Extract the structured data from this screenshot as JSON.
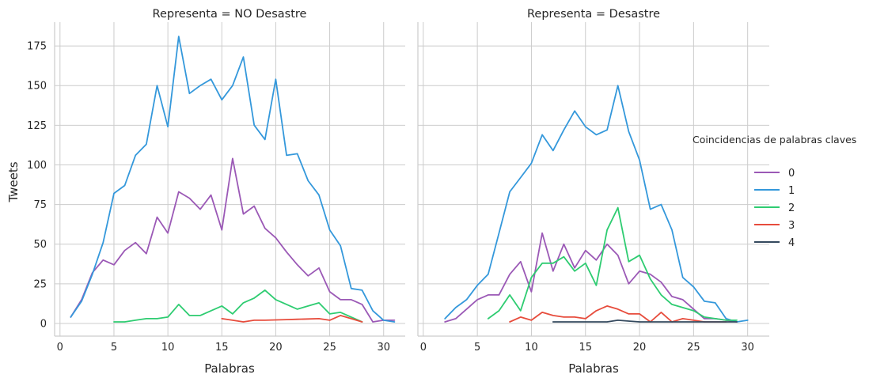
{
  "chart_data": {
    "type": "line",
    "ylabel": "Tweets",
    "xlabel": "Palabras",
    "xlim": [
      -0.5,
      32
    ],
    "ylim": [
      -8,
      190
    ],
    "xticks": [
      0,
      5,
      10,
      15,
      20,
      25,
      30
    ],
    "yticks": [
      0,
      25,
      50,
      75,
      100,
      125,
      150,
      175
    ],
    "xtick_labels": [
      "0",
      "5",
      "10",
      "15",
      "20",
      "25",
      "30"
    ],
    "ytick_labels": [
      "0",
      "25",
      "50",
      "75",
      "100",
      "125",
      "150",
      "175"
    ],
    "grid": true,
    "legend": {
      "title": "Coincidencias de palabras claves",
      "placement": "right",
      "entries": [
        {
          "label": "0",
          "color": "#9b59b6"
        },
        {
          "label": "1",
          "color": "#3498db"
        },
        {
          "label": "2",
          "color": "#2ecc71"
        },
        {
          "label": "3",
          "color": "#e74c3c"
        },
        {
          "label": "4",
          "color": "#34495e"
        }
      ]
    },
    "panels": [
      {
        "title": "Representa = NO Desastre",
        "series": [
          {
            "legend_index": 0,
            "x": [
              1,
              2,
              3,
              4,
              5,
              6,
              7,
              8,
              9,
              10,
              11,
              12,
              13,
              14,
              15,
              16,
              17,
              18,
              19,
              20,
              21,
              22,
              23,
              24,
              25,
              26,
              27,
              28,
              29,
              30,
              31
            ],
            "y": [
              4,
              15,
              32,
              40,
              37,
              46,
              51,
              44,
              67,
              57,
              83,
              79,
              72,
              81,
              59,
              104,
              69,
              74,
              60,
              54,
              45,
              37,
              30,
              35,
              20,
              15,
              15,
              12,
              1,
              2,
              2
            ]
          },
          {
            "legend_index": 1,
            "x": [
              1,
              2,
              3,
              4,
              5,
              6,
              7,
              8,
              9,
              10,
              11,
              12,
              13,
              14,
              15,
              16,
              17,
              18,
              19,
              20,
              21,
              22,
              23,
              24,
              25,
              26,
              27,
              28,
              29,
              30,
              31
            ],
            "y": [
              4,
              14,
              31,
              51,
              82,
              87,
              106,
              113,
              150,
              124,
              181,
              145,
              150,
              154,
              141,
              150,
              168,
              125,
              116,
              154,
              106,
              107,
              90,
              81,
              59,
              49,
              22,
              21,
              8,
              2,
              1
            ]
          },
          {
            "legend_index": 2,
            "x": [
              5,
              6,
              7,
              8,
              9,
              10,
              11,
              12,
              13,
              14,
              15,
              16,
              17,
              18,
              19,
              20,
              21,
              22,
              23,
              24,
              25,
              26,
              27,
              28
            ],
            "y": [
              1,
              1,
              2,
              3,
              3,
              4,
              12,
              5,
              5,
              8,
              11,
              6,
              13,
              16,
              21,
              15,
              12,
              9,
              11,
              13,
              6,
              7,
              4,
              1
            ]
          },
          {
            "legend_index": 3,
            "x": [
              15,
              16,
              17,
              18,
              19,
              20,
              21,
              22,
              23,
              24,
              25,
              26,
              27,
              28
            ],
            "y": [
              3,
              2,
              1,
              2,
              2,
              2.2,
              2.4,
              2.6,
              2.8,
              3,
              2,
              5,
              3,
              1
            ]
          }
        ]
      },
      {
        "title": "Representa = Desastre",
        "series": [
          {
            "legend_index": 0,
            "x": [
              2,
              3,
              4,
              5,
              6,
              7,
              8,
              9,
              10,
              11,
              12,
              13,
              14,
              15,
              16,
              17,
              18,
              19,
              20,
              21,
              22,
              23,
              24,
              25,
              26,
              27,
              28,
              29
            ],
            "y": [
              1,
              3,
              9,
              15,
              18,
              18,
              31,
              39,
              20,
              57,
              33,
              50,
              35,
              46,
              40,
              50,
              43,
              25,
              33,
              31,
              26,
              17,
              15,
              9,
              3,
              3,
              2,
              1
            ]
          },
          {
            "legend_index": 1,
            "x": [
              2,
              3,
              4,
              5,
              6,
              7,
              8,
              9,
              10,
              11,
              12,
              13,
              14,
              15,
              16,
              17,
              18,
              19,
              20,
              21,
              22,
              23,
              24,
              25,
              26,
              27,
              28,
              29,
              30
            ],
            "y": [
              3,
              10,
              15,
              24,
              31,
              57,
              83,
              92,
              101,
              119,
              109,
              122,
              134,
              124,
              119,
              122,
              150,
              121,
              103,
              72,
              75,
              59,
              29,
              23,
              14,
              13,
              3,
              1,
              2
            ]
          },
          {
            "legend_index": 2,
            "x": [
              6,
              7,
              8,
              9,
              10,
              11,
              12,
              13,
              14,
              15,
              16,
              17,
              18,
              19,
              20,
              21,
              22,
              23,
              24,
              25,
              26,
              27,
              28,
              29
            ],
            "y": [
              3,
              8,
              18,
              8,
              29,
              38,
              38,
              42,
              33,
              38,
              24,
              59,
              73,
              39,
              43,
              28,
              18,
              12,
              10,
              8,
              4,
              3,
              2,
              2
            ]
          },
          {
            "legend_index": 3,
            "x": [
              8,
              9,
              10,
              11,
              12,
              13,
              14,
              15,
              16,
              17,
              18,
              19,
              20,
              21,
              22,
              23,
              24,
              25,
              26,
              27,
              28
            ],
            "y": [
              1,
              4,
              2,
              7,
              5,
              4,
              4,
              3,
              8,
              11,
              9,
              6,
              6,
              1,
              7,
              1,
              3,
              2,
              1,
              1,
              1
            ]
          },
          {
            "legend_index": 4,
            "x": [
              12,
              13,
              14,
              15,
              16,
              17,
              18,
              19,
              20,
              21,
              22,
              23,
              24,
              25,
              26,
              27,
              28,
              29
            ],
            "y": [
              1,
              1,
              1,
              1,
              1,
              1,
              2,
              1.5,
              1,
              1,
              1,
              1,
              1,
              1,
              1,
              1,
              1,
              1
            ]
          }
        ]
      }
    ]
  }
}
